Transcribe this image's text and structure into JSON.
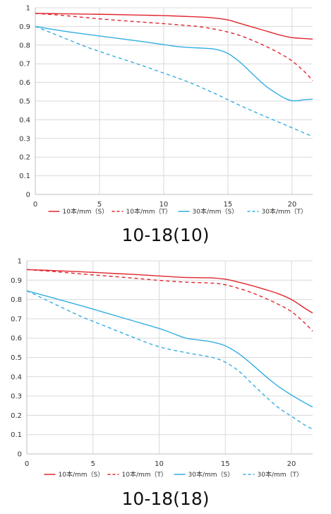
{
  "chart_data": [
    {
      "type": "line",
      "caption": "10-18(10)",
      "xlim": [
        0,
        21.6
      ],
      "ylim": [
        0,
        1
      ],
      "x_ticks": [
        0,
        5,
        10,
        15,
        20
      ],
      "y_ticks": [
        0,
        0.1,
        0.2,
        0.3,
        0.4,
        0.5,
        0.6,
        0.7,
        0.8,
        0.9,
        1
      ],
      "x_tick_labels": [
        "0",
        "5",
        "10",
        "15",
        "20"
      ],
      "y_tick_labels": [
        "0",
        "0.1",
        "0.2",
        "0.3",
        "0.4",
        "0.5",
        "0.6",
        "0.7",
        "0.8",
        "0.9",
        "1"
      ],
      "grid": true,
      "legend_position": "bottom",
      "series": [
        {
          "name": "10本/mm（S）",
          "color": "#e0262d",
          "dash": "solid",
          "x": [
            0,
            2,
            4,
            6,
            8,
            10,
            12,
            13,
            14,
            15,
            16,
            17,
            18,
            19,
            20,
            21,
            21.6
          ],
          "y": [
            0.97,
            0.968,
            0.966,
            0.964,
            0.961,
            0.958,
            0.953,
            0.95,
            0.945,
            0.935,
            0.915,
            0.895,
            0.875,
            0.855,
            0.84,
            0.835,
            0.832
          ]
        },
        {
          "name": "10本/mm（T）",
          "color": "#e0262d",
          "dash": "dashed",
          "x": [
            0,
            2,
            4,
            6,
            8,
            10,
            12,
            13,
            14,
            15,
            16,
            17,
            18,
            19,
            20,
            21,
            21.6
          ],
          "y": [
            0.97,
            0.96,
            0.947,
            0.935,
            0.925,
            0.915,
            0.904,
            0.897,
            0.885,
            0.87,
            0.85,
            0.823,
            0.792,
            0.757,
            0.715,
            0.655,
            0.61
          ]
        },
        {
          "name": "30本/mm（S）",
          "color": "#33aee3",
          "dash": "solid",
          "x": [
            0,
            2,
            4,
            6,
            8,
            10,
            11,
            12,
            13,
            14,
            15,
            16,
            17,
            18,
            19,
            19.5,
            20,
            20.5,
            21,
            21.6
          ],
          "y": [
            0.9,
            0.877,
            0.858,
            0.84,
            0.822,
            0.803,
            0.793,
            0.787,
            0.784,
            0.778,
            0.755,
            0.705,
            0.64,
            0.578,
            0.532,
            0.513,
            0.502,
            0.503,
            0.508,
            0.51
          ]
        },
        {
          "name": "30本/mm（T）",
          "color": "#33aee3",
          "dash": "dashed",
          "x": [
            0,
            2,
            4,
            6,
            8,
            10,
            12,
            14,
            16,
            18,
            20,
            21.6
          ],
          "y": [
            0.9,
            0.845,
            0.79,
            0.743,
            0.698,
            0.65,
            0.6,
            0.54,
            0.475,
            0.415,
            0.357,
            0.31
          ]
        }
      ]
    },
    {
      "type": "line",
      "caption": "10-18(18)",
      "xlim": [
        0,
        21.6
      ],
      "ylim": [
        0,
        1
      ],
      "x_ticks": [
        0,
        5,
        10,
        15,
        20
      ],
      "y_ticks": [
        0,
        0.1,
        0.2,
        0.3,
        0.4,
        0.5,
        0.6,
        0.7,
        0.8,
        0.9,
        1
      ],
      "x_tick_labels": [
        "0",
        "5",
        "10",
        "15",
        "20"
      ],
      "y_tick_labels": [
        "0",
        "0.1",
        "0.2",
        "0.3",
        "0.4",
        "0.5",
        "0.6",
        "0.7",
        "0.8",
        "0.9",
        "1"
      ],
      "grid": true,
      "legend_position": "bottom",
      "series": [
        {
          "name": "10本/mm（S）",
          "color": "#e0262d",
          "dash": "solid",
          "x": [
            0,
            2,
            4,
            6,
            8,
            10,
            12,
            14,
            15,
            16,
            17,
            18,
            19,
            20,
            21,
            21.6
          ],
          "y": [
            0.955,
            0.95,
            0.944,
            0.937,
            0.93,
            0.922,
            0.914,
            0.912,
            0.905,
            0.89,
            0.872,
            0.852,
            0.83,
            0.8,
            0.755,
            0.73
          ]
        },
        {
          "name": "10本/mm（T）",
          "color": "#e0262d",
          "dash": "dashed",
          "x": [
            0,
            2,
            4,
            6,
            8,
            10,
            12,
            14,
            15,
            16,
            17,
            18,
            19,
            20,
            21,
            21.6
          ],
          "y": [
            0.955,
            0.945,
            0.933,
            0.922,
            0.911,
            0.899,
            0.89,
            0.885,
            0.876,
            0.858,
            0.835,
            0.807,
            0.775,
            0.737,
            0.678,
            0.636
          ]
        },
        {
          "name": "30本/mm（S）",
          "color": "#33aee3",
          "dash": "solid",
          "x": [
            0,
            2,
            4,
            6,
            8,
            10,
            11,
            12,
            13,
            14,
            15,
            16,
            17,
            18,
            19,
            20,
            21,
            21.6
          ],
          "y": [
            0.845,
            0.808,
            0.77,
            0.73,
            0.69,
            0.65,
            0.625,
            0.6,
            0.59,
            0.58,
            0.56,
            0.52,
            0.465,
            0.405,
            0.35,
            0.305,
            0.265,
            0.243
          ]
        },
        {
          "name": "30本/mm（T）",
          "color": "#33aee3",
          "dash": "dashed",
          "x": [
            0,
            2,
            4,
            6,
            8,
            10,
            12,
            14,
            15,
            16,
            17,
            18,
            19,
            20,
            21,
            21.6
          ],
          "y": [
            0.845,
            0.78,
            0.715,
            0.66,
            0.605,
            0.555,
            0.525,
            0.5,
            0.475,
            0.43,
            0.365,
            0.3,
            0.24,
            0.195,
            0.15,
            0.128
          ]
        }
      ]
    }
  ]
}
